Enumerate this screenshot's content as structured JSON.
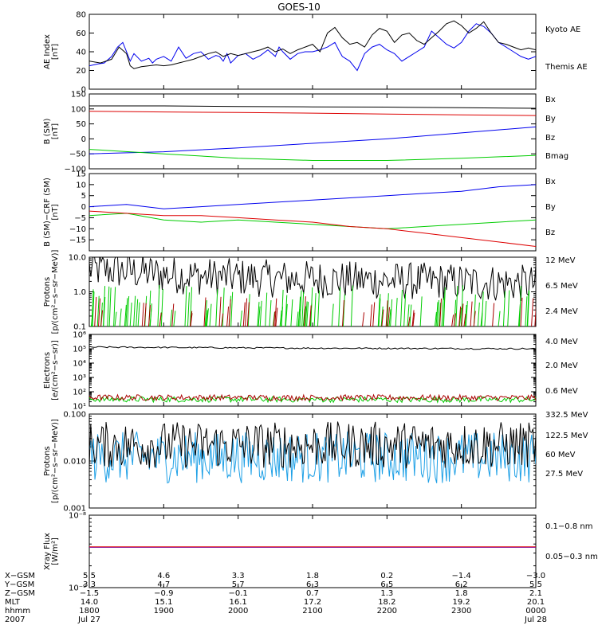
{
  "title": "GOES-10",
  "colors": {
    "black": "#000000",
    "blue": "#0000ee",
    "green": "#00cc00",
    "red": "#dd0000",
    "darkred": "#aa0000",
    "yellow": "#ffd000",
    "cyan": "#1ea0e6",
    "purple": "#6000c0"
  },
  "chart_data": [
    {
      "type": "line",
      "ylabel": [
        "AE Index",
        "[nT]"
      ],
      "ylim": [
        0,
        80
      ],
      "yscale": "linear",
      "yticks": [
        0,
        20,
        40,
        60,
        80
      ],
      "yticklabels": [
        "0",
        "20",
        "40",
        "60",
        "80"
      ],
      "legend": [
        "Kyoto AE",
        "Themis AE"
      ],
      "series": [
        {
          "name": "Kyoto AE",
          "color": "#0000ee",
          "x": [
            0,
            0.12,
            0.2,
            0.3,
            0.38,
            0.45,
            0.5,
            0.55,
            0.6,
            0.7,
            0.8,
            0.85,
            0.9,
            1.0,
            1.1,
            1.2,
            1.3,
            1.4,
            1.5,
            1.6,
            1.7,
            1.75,
            1.8,
            1.85,
            1.9,
            2.0,
            2.1,
            2.2,
            2.3,
            2.4,
            2.5,
            2.55,
            2.6,
            2.7,
            2.8,
            2.9,
            3.0,
            3.1,
            3.2,
            3.3,
            3.35,
            3.4,
            3.5,
            3.6,
            3.7,
            3.8,
            3.9,
            4.0,
            4.1,
            4.2,
            4.3,
            4.4,
            4.5,
            4.6,
            4.7,
            4.8,
            4.9,
            5.0,
            5.1,
            5.2,
            5.3,
            5.4,
            5.5,
            5.6,
            5.7,
            5.8,
            5.9,
            6.0
          ],
          "y": [
            25,
            27,
            28,
            35,
            45,
            50,
            40,
            30,
            38,
            30,
            33,
            28,
            32,
            35,
            30,
            45,
            33,
            38,
            40,
            32,
            36,
            35,
            30,
            38,
            28,
            36,
            38,
            32,
            36,
            42,
            35,
            45,
            40,
            32,
            38,
            40,
            40,
            42,
            45,
            50,
            42,
            35,
            30,
            20,
            38,
            45,
            48,
            42,
            38,
            30,
            35,
            40,
            45,
            62,
            55,
            48,
            44,
            50,
            62,
            70,
            67,
            60,
            50,
            45,
            40,
            35,
            32,
            35
          ]
        },
        {
          "name": "Themis AE",
          "color": "#000000",
          "x": [
            0,
            0.15,
            0.3,
            0.4,
            0.5,
            0.55,
            0.6,
            0.7,
            0.8,
            0.9,
            1.0,
            1.1,
            1.2,
            1.3,
            1.4,
            1.5,
            1.6,
            1.7,
            1.8,
            1.9,
            2.0,
            2.1,
            2.2,
            2.3,
            2.4,
            2.5,
            2.6,
            2.7,
            2.8,
            2.9,
            3.0,
            3.1,
            3.2,
            3.3,
            3.4,
            3.5,
            3.6,
            3.7,
            3.8,
            3.9,
            4.0,
            4.1,
            4.2,
            4.3,
            4.4,
            4.5,
            4.6,
            4.7,
            4.8,
            4.9,
            5.0,
            5.1,
            5.2,
            5.3,
            5.4,
            5.5,
            5.6,
            5.7,
            5.8,
            5.9,
            6.0
          ],
          "y": [
            30,
            28,
            32,
            45,
            38,
            25,
            22,
            24,
            25,
            26,
            25,
            26,
            28,
            30,
            32,
            35,
            38,
            40,
            35,
            38,
            36,
            38,
            40,
            42,
            45,
            40,
            43,
            38,
            42,
            45,
            48,
            40,
            60,
            66,
            55,
            48,
            50,
            45,
            58,
            65,
            62,
            50,
            58,
            60,
            52,
            48,
            55,
            62,
            70,
            73,
            68,
            60,
            65,
            72,
            60,
            50,
            48,
            45,
            42,
            44,
            42
          ]
        }
      ]
    },
    {
      "type": "line",
      "ylabel": [
        "B (SM)",
        "[nT]"
      ],
      "ylim": [
        -100,
        150
      ],
      "yscale": "linear",
      "yticks": [
        -100,
        -50,
        0,
        50,
        100,
        150
      ],
      "yticklabels": [
        "−100",
        "−50",
        "0",
        "50",
        "100",
        "150"
      ],
      "legend": [
        "Bx",
        "By",
        "Bz",
        "Bmag"
      ],
      "series": [
        {
          "name": "Bx",
          "color": "#0000ee",
          "x": [
            0,
            1,
            2,
            3,
            4,
            5,
            6
          ],
          "y": [
            -50,
            -43,
            -30,
            -15,
            0,
            20,
            40
          ]
        },
        {
          "name": "By",
          "color": "#00cc00",
          "x": [
            0,
            1,
            2,
            3,
            4,
            5,
            6
          ],
          "y": [
            -35,
            -50,
            -65,
            -72,
            -72,
            -65,
            -55
          ]
        },
        {
          "name": "Bz",
          "color": "#dd0000",
          "x": [
            0,
            1,
            2,
            3,
            4,
            5,
            6
          ],
          "y": [
            92,
            90,
            88,
            86,
            83,
            80,
            78
          ]
        },
        {
          "name": "Bmag",
          "color": "#000000",
          "x": [
            0,
            1,
            2,
            3,
            4,
            5,
            6
          ],
          "y": [
            110,
            110,
            108,
            107,
            106,
            104,
            102
          ]
        }
      ]
    },
    {
      "type": "line",
      "ylabel": [
        "B (SM)−CRF (SM)",
        "[nT]"
      ],
      "ylim": [
        -20,
        15
      ],
      "yscale": "linear",
      "yticks": [
        -20,
        -15,
        -10,
        -5,
        0,
        5,
        10,
        15
      ],
      "yticklabels": [
        "",
        "−15",
        "−10",
        "−5",
        "0",
        "5",
        "10",
        "15"
      ],
      "legend": [
        "Bx",
        "By",
        "Bz"
      ],
      "series": [
        {
          "name": "Bx",
          "color": "#0000ee",
          "x": [
            0,
            0.5,
            1,
            1.5,
            2,
            2.5,
            3,
            3.5,
            4,
            4.5,
            5,
            5.5,
            6
          ],
          "y": [
            0,
            1,
            -1,
            0,
            1,
            2,
            3,
            4,
            5,
            6,
            7,
            9,
            10
          ]
        },
        {
          "name": "By",
          "color": "#00cc00",
          "x": [
            0,
            0.5,
            1,
            1.5,
            2,
            2.5,
            3,
            3.5,
            4,
            4.5,
            5,
            5.5,
            6
          ],
          "y": [
            -4,
            -3,
            -6,
            -7,
            -6,
            -7,
            -8,
            -9,
            -10,
            -9,
            -8,
            -7,
            -6
          ]
        },
        {
          "name": "Bz",
          "color": "#dd0000",
          "x": [
            0,
            0.5,
            1,
            1.5,
            2,
            2.5,
            3,
            3.5,
            4,
            4.5,
            5,
            5.5,
            6
          ],
          "y": [
            -2,
            -3,
            -4,
            -4,
            -5,
            -6,
            -7,
            -9,
            -10,
            -12,
            -14,
            -16,
            -18
          ]
        }
      ]
    },
    {
      "type": "line",
      "ylabel": [
        "Protons",
        "[p/(cm²−s−sr−MeV)]"
      ],
      "ylim": [
        0.1,
        10
      ],
      "yscale": "log",
      "yticks": [
        0.1,
        1,
        10
      ],
      "yticklabels": [
        "0.1",
        "1.0",
        "10.0"
      ],
      "legend": [
        "12 MeV",
        "6.5 MeV",
        "2.4 MeV"
      ],
      "series": [
        {
          "name": "2.4 MeV",
          "color": "#000000",
          "x": [
            0,
            0.5,
            1,
            1.5,
            2,
            2.5,
            3,
            3.5,
            4,
            4.5,
            5,
            5.5,
            6
          ],
          "y": [
            4.5,
            4,
            3.2,
            2.8,
            2.6,
            2.4,
            2.3,
            2.2,
            2.1,
            2.0,
            1.9,
            1.8,
            1.7
          ],
          "noise": 0.55,
          "count": 300
        },
        {
          "name": "6.5 MeV",
          "color": "#00cc00",
          "x": [
            0,
            6
          ],
          "y": [
            0.2,
            0.2
          ],
          "noise": 0.4,
          "count": 110,
          "sparse": true
        },
        {
          "name": "12 MeV",
          "color": "#aa0000",
          "x": [
            0,
            6
          ],
          "y": [
            0.15,
            0.15
          ],
          "noise": 0.3,
          "count": 45,
          "sparse": true
        }
      ]
    },
    {
      "type": "line",
      "ylabel": [
        "Electrons",
        "[e/(cm²−s−sr)]"
      ],
      "ylim": [
        10,
        1000000
      ],
      "yscale": "log",
      "yticks": [
        10,
        100,
        1000,
        10000,
        100000,
        1000000
      ],
      "yticklabels": [
        "10¹",
        "10²",
        "10³",
        "10⁴",
        "10⁵",
        "10⁶"
      ],
      "legend": [
        "4.0 MeV",
        "2.0 MeV",
        "0.6 MeV"
      ],
      "series": [
        {
          "name": "0.6 MeV",
          "color": "#000000",
          "x": [
            0,
            3,
            6
          ],
          "y": [
            130000,
            110000,
            100000
          ],
          "noise": 0.05,
          "count": 200
        },
        {
          "name": "2.0 MeV",
          "color": "#00cc00",
          "x": [
            0,
            6
          ],
          "y": [
            30,
            28
          ],
          "noise": 0.2,
          "count": 300
        },
        {
          "name": "4.0 MeV",
          "color": "#aa0000",
          "x": [
            0,
            6
          ],
          "y": [
            40,
            38
          ],
          "noise": 0.2,
          "count": 300
        }
      ]
    },
    {
      "type": "line",
      "ylabel": [
        "Protons",
        "[p/(cm²−s−sr−MeV)]"
      ],
      "ylim": [
        0.001,
        0.1
      ],
      "yscale": "log",
      "yticks": [
        0.001,
        0.01,
        0.1
      ],
      "yticklabels": [
        "0.001",
        "0.010",
        "0.100"
      ],
      "legend": [
        "332.5 MeV",
        "122.5 MeV",
        "60 MeV",
        "27.5 MeV"
      ],
      "series": [
        {
          "name": "60 MeV",
          "color": "#1ea0e6",
          "x": [
            0,
            6
          ],
          "y": [
            0.012,
            0.012
          ],
          "noise": 0.55,
          "count": 320
        },
        {
          "name": "27.5 MeV",
          "color": "#000000",
          "x": [
            0,
            6
          ],
          "y": [
            0.022,
            0.022
          ],
          "noise": 0.5,
          "count": 320
        }
      ]
    },
    {
      "type": "line",
      "ylabel": [
        "Xray Flux",
        "[W/m²]"
      ],
      "ylim": [
        1e-09,
        1e-08
      ],
      "yscale": "log",
      "yticks": [
        1e-09,
        1e-08
      ],
      "yticklabels": [
        "10⁻⁹",
        "10⁻⁸"
      ],
      "legend": [
        "0.1−0.8 nm",
        "0.05−0.3 nm"
      ],
      "series": [
        {
          "name": "0.05−0.3 nm",
          "color": "#6000c0",
          "x": [
            0,
            6
          ],
          "y": [
            3.6e-09,
            3.6e-09
          ]
        },
        {
          "name": "0.1−0.8 nm",
          "color": "#dd0000",
          "x": [
            0,
            6
          ],
          "y": [
            3.65e-09,
            3.65e-09
          ]
        }
      ]
    }
  ],
  "xaxis": {
    "range": [
      0,
      6
    ],
    "row_labels": [
      "X−GSM",
      "Y−GSM",
      "Z−GSM",
      "MLT",
      "hhmm",
      "2007"
    ],
    "columns": [
      [
        "5.5",
        "3.3",
        "−1.5",
        "14.0",
        "1800",
        "Jul 27"
      ],
      [
        "4.6",
        "4.7",
        "−0.9",
        "15.1",
        "1900",
        ""
      ],
      [
        "3.3",
        "5.7",
        "−0.1",
        "16.1",
        "2000",
        ""
      ],
      [
        "1.8",
        "6.3",
        "0.7",
        "17.2",
        "2100",
        ""
      ],
      [
        "0.2",
        "6.5",
        "1.3",
        "18.2",
        "2200",
        ""
      ],
      [
        "−1.4",
        "6.2",
        "1.8",
        "19.2",
        "2300",
        ""
      ],
      [
        "−3.0",
        "5.5",
        "2.1",
        "20.1",
        "0000",
        "Jul 28"
      ]
    ]
  }
}
